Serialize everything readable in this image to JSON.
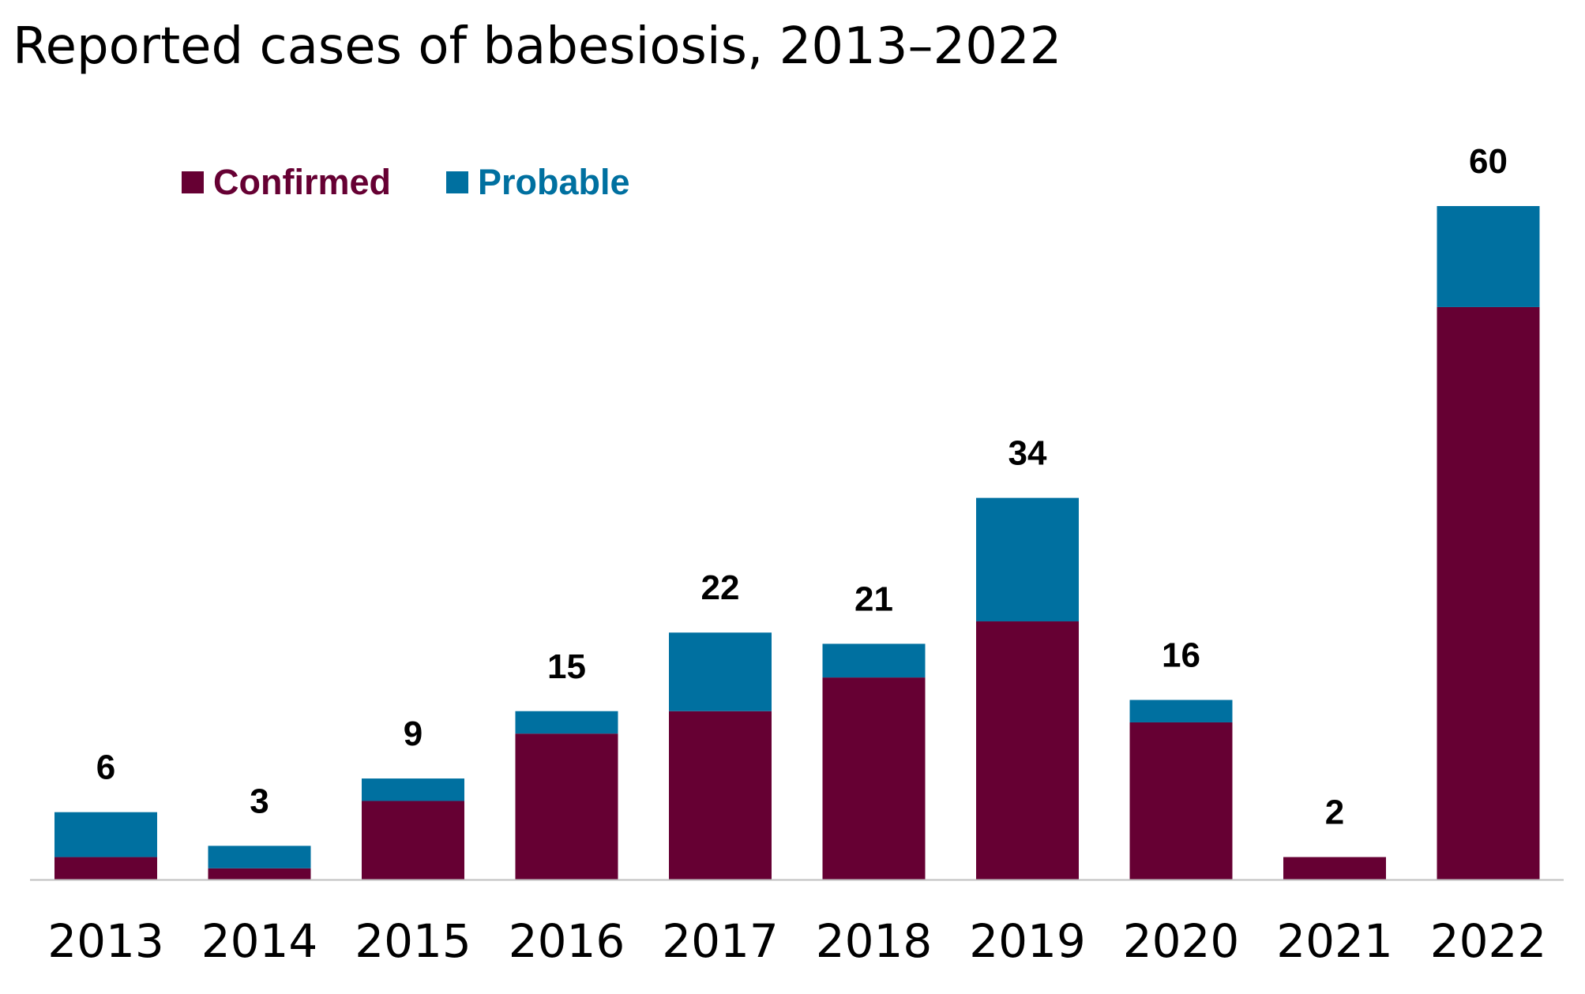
{
  "chart_data": {
    "type": "bar",
    "stacked": true,
    "title": "Reported cases of babesiosis, 2013–2022",
    "categories": [
      "2013",
      "2014",
      "2015",
      "2016",
      "2017",
      "2018",
      "2019",
      "2020",
      "2021",
      "2022"
    ],
    "series": [
      {
        "name": "Confirmed",
        "color": "#660033",
        "values": [
          2,
          1,
          7,
          13,
          15,
          18,
          23,
          14,
          2,
          51
        ]
      },
      {
        "name": "Probable",
        "color": "#0070A0",
        "values": [
          4,
          2,
          2,
          2,
          7,
          3,
          11,
          2,
          0,
          9
        ]
      }
    ],
    "totals": [
      6,
      3,
      9,
      15,
      22,
      21,
      34,
      16,
      2,
      60
    ],
    "ylim": [
      0,
      60
    ],
    "grid": false,
    "legend_position": "top-left",
    "xlabel": "",
    "ylabel": ""
  }
}
